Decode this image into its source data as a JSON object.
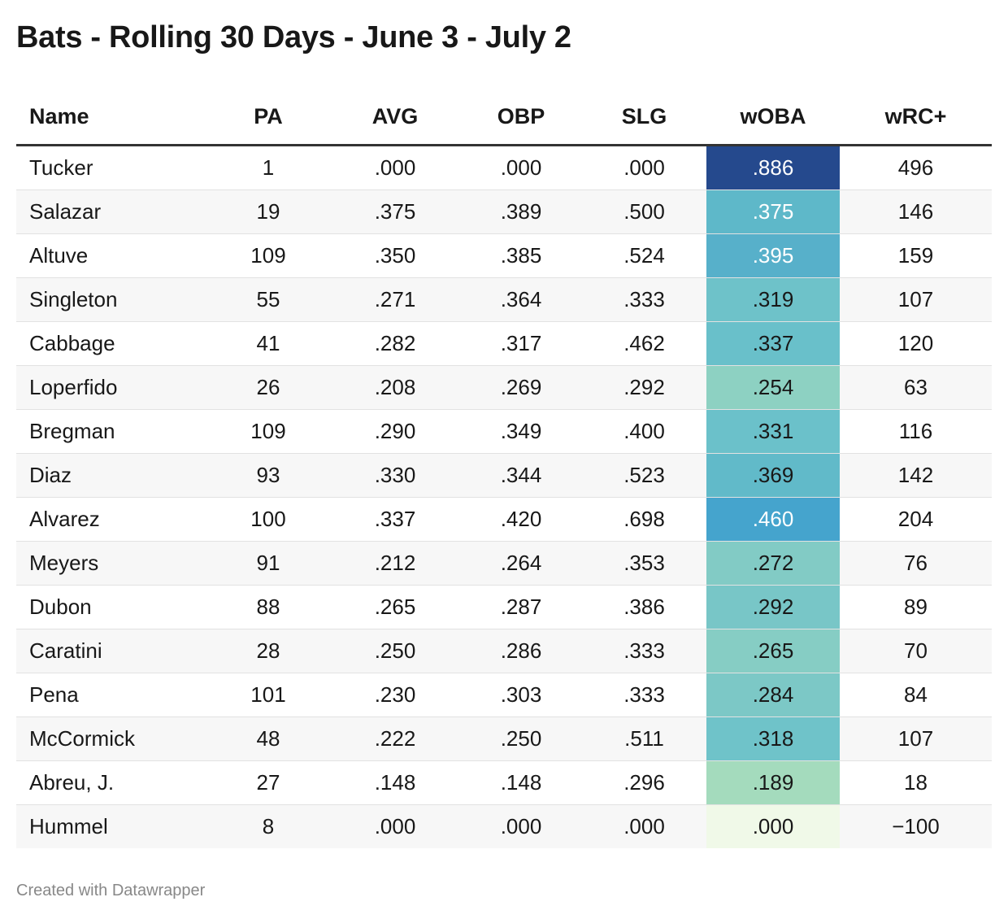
{
  "title": "Bats - Rolling 30 Days - June 3 - July 2",
  "footer": "Created with Datawrapper",
  "chart_data": {
    "type": "table",
    "columns": [
      "Name",
      "PA",
      "AVG",
      "OBP",
      "SLG",
      "wOBA",
      "wRC+"
    ],
    "heatmap_column": "wOBA",
    "heatmap_colors": {
      "low": "#f0f9e8",
      "mid": "#5fb8c8",
      "high": "#25498d"
    },
    "rows": [
      {
        "name": "Tucker",
        "pa": "1",
        "avg": ".000",
        "obp": ".000",
        "slg": ".000",
        "woba": ".886",
        "wrc": "496",
        "woba_color": "#25498d",
        "woba_text": "#ffffff"
      },
      {
        "name": "Salazar",
        "pa": "19",
        "avg": ".375",
        "obp": ".389",
        "slg": ".500",
        "woba": ".375",
        "wrc": "146",
        "woba_color": "#5eb8c9",
        "woba_text": "#ffffff"
      },
      {
        "name": "Altuve",
        "pa": "109",
        "avg": ".350",
        "obp": ".385",
        "slg": ".524",
        "woba": ".395",
        "wrc": "159",
        "woba_color": "#57b0ca",
        "woba_text": "#ffffff"
      },
      {
        "name": "Singleton",
        "pa": "55",
        "avg": ".271",
        "obp": ".364",
        "slg": ".333",
        "woba": ".319",
        "wrc": "107",
        "woba_color": "#6ec2c9",
        "woba_text": "#181818"
      },
      {
        "name": "Cabbage",
        "pa": "41",
        "avg": ".282",
        "obp": ".317",
        "slg": ".462",
        "woba": ".337",
        "wrc": "120",
        "woba_color": "#69c0ca",
        "woba_text": "#181818"
      },
      {
        "name": "Loperfido",
        "pa": "26",
        "avg": ".208",
        "obp": ".269",
        "slg": ".292",
        "woba": ".254",
        "wrc": "63",
        "woba_color": "#8dd1c2",
        "woba_text": "#181818"
      },
      {
        "name": "Bregman",
        "pa": "109",
        "avg": ".290",
        "obp": ".349",
        "slg": ".400",
        "woba": ".331",
        "wrc": "116",
        "woba_color": "#6bc1ca",
        "woba_text": "#181818"
      },
      {
        "name": "Diaz",
        "pa": "93",
        "avg": ".330",
        "obp": ".344",
        "slg": ".523",
        "woba": ".369",
        "wrc": "142",
        "woba_color": "#61bac9",
        "woba_text": "#181818"
      },
      {
        "name": "Alvarez",
        "pa": "100",
        "avg": ".337",
        "obp": ".420",
        "slg": ".698",
        "woba": ".460",
        "wrc": "204",
        "woba_color": "#45a4cd",
        "woba_text": "#ffffff"
      },
      {
        "name": "Meyers",
        "pa": "91",
        "avg": ".212",
        "obp": ".264",
        "slg": ".353",
        "woba": ".272",
        "wrc": "76",
        "woba_color": "#82cbc5",
        "woba_text": "#181818"
      },
      {
        "name": "Dubon",
        "pa": "88",
        "avg": ".265",
        "obp": ".287",
        "slg": ".386",
        "woba": ".292",
        "wrc": "89",
        "woba_color": "#78c6c7",
        "woba_text": "#181818"
      },
      {
        "name": "Caratini",
        "pa": "28",
        "avg": ".250",
        "obp": ".286",
        "slg": ".333",
        "woba": ".265",
        "wrc": "70",
        "woba_color": "#86cdc4",
        "woba_text": "#181818"
      },
      {
        "name": "Pena",
        "pa": "101",
        "avg": ".230",
        "obp": ".303",
        "slg": ".333",
        "woba": ".284",
        "wrc": "84",
        "woba_color": "#7cc8c6",
        "woba_text": "#181818"
      },
      {
        "name": "McCormick",
        "pa": "48",
        "avg": ".222",
        "obp": ".250",
        "slg": ".511",
        "woba": ".318",
        "wrc": "107",
        "woba_color": "#6fc3c9",
        "woba_text": "#181818"
      },
      {
        "name": "Abreu, J.",
        "pa": "27",
        "avg": ".148",
        "obp": ".148",
        "slg": ".296",
        "woba": ".189",
        "wrc": "18",
        "woba_color": "#a4dbbd",
        "woba_text": "#181818"
      },
      {
        "name": "Hummel",
        "pa": "8",
        "avg": ".000",
        "obp": ".000",
        "slg": ".000",
        "woba": ".000",
        "wrc": "−100",
        "woba_color": "#f0f9e8",
        "woba_text": "#181818"
      }
    ]
  }
}
